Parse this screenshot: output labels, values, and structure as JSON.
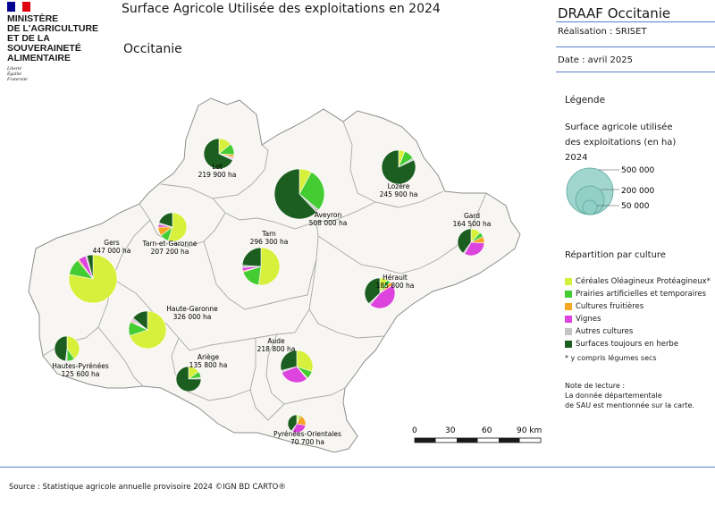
{
  "ministry": {
    "name_lines": [
      "MINISTÈRE",
      "DE L'AGRICULTURE",
      "ET DE LA SOUVERAINETÉ",
      "ALIMENTAIRE"
    ],
    "motto_lines": [
      "Liberté",
      "Égalité",
      "Fraternité"
    ],
    "flag_colors": [
      "#000091",
      "#ffffff",
      "#e1000f"
    ]
  },
  "header": {
    "title": "Surface Agricole Utilisée des exploitations en 2024",
    "subtitle": "Occitanie",
    "organization": "DRAAF Occitanie",
    "realisation": "Réalisation : SRISET",
    "date": "Date : avril 2025"
  },
  "legend": {
    "title": "Légende",
    "size_title_lines": [
      "Surface agricole utilisée",
      "des exploitations (en ha)",
      "2024"
    ],
    "size_values": [
      "500 000",
      "200 000",
      "50 000"
    ],
    "size_circle_color": "#8fcfc4",
    "crop_title": "Répartition par culture",
    "crops": [
      {
        "label": "Céréales Oléagineux Protéagineux*",
        "color": "#d7f03c"
      },
      {
        "label": "Prairies artificielles et temporaires",
        "color": "#44cc33"
      },
      {
        "label": "Cultures fruitières",
        "color": "#f5a623"
      },
      {
        "label": "Vignes",
        "color": "#dd44dd"
      },
      {
        "label": "Autres cultures",
        "color": "#c4c4c4"
      },
      {
        "label": "Surfaces toujours en herbe",
        "color": "#1b5e20"
      }
    ],
    "footnote": "* y compris légumes secs",
    "note_lines": [
      "Note de lecture :",
      "La donnée départementale",
      "de SAU est mentionnée sur la carte."
    ]
  },
  "departments": [
    {
      "name": "Lot",
      "value": "219 900 ha",
      "shares": [
        14,
        12,
        3,
        1,
        2,
        68
      ]
    },
    {
      "name": "Lozère",
      "value": "245 900 ha",
      "shares": [
        6,
        10,
        0,
        0,
        2,
        82
      ]
    },
    {
      "name": "Aveyron",
      "value": "508 000 ha",
      "shares": [
        8,
        28,
        0,
        0,
        2,
        62
      ]
    },
    {
      "name": "Gard",
      "value": "164 500 ha",
      "shares": [
        12,
        6,
        8,
        32,
        2,
        40
      ]
    },
    {
      "name": "Tarn-et-Garonne",
      "value": "207 200 ha",
      "shares": [
        55,
        10,
        10,
        3,
        2,
        20
      ]
    },
    {
      "name": "Gers",
      "value": "447 000 ha",
      "shares": [
        78,
        11,
        1,
        5,
        1,
        4
      ]
    },
    {
      "name": "Tarn",
      "value": "296 300 ha",
      "shares": [
        52,
        18,
        1,
        3,
        2,
        24
      ]
    },
    {
      "name": "Hérault",
      "value": "185 800 ha",
      "shares": [
        8,
        4,
        4,
        45,
        2,
        37
      ]
    },
    {
      "name": "Haute-Garonne",
      "value": "326 000 ha",
      "shares": [
        70,
        12,
        1,
        1,
        2,
        14
      ]
    },
    {
      "name": "Hautes-Pyrénées",
      "value": "125 600 ha",
      "shares": [
        40,
        10,
        0,
        0,
        2,
        48
      ]
    },
    {
      "name": "Ariège",
      "value": "135 800 ha",
      "shares": [
        15,
        8,
        0,
        0,
        2,
        75
      ]
    },
    {
      "name": "Aude",
      "value": "218 800 ha",
      "shares": [
        30,
        8,
        1,
        30,
        2,
        29
      ]
    },
    {
      "name": "Pyrénées-Orientales",
      "value": "70 700 ha",
      "shares": [
        5,
        3,
        20,
        30,
        2,
        40
      ]
    }
  ],
  "scale_bar": {
    "labels": [
      "0",
      "30",
      "60",
      "90 km"
    ]
  },
  "footer": {
    "source": "Source : Statistique agricole annuelle provisoire 2024 ©IGN BD CARTO®"
  }
}
